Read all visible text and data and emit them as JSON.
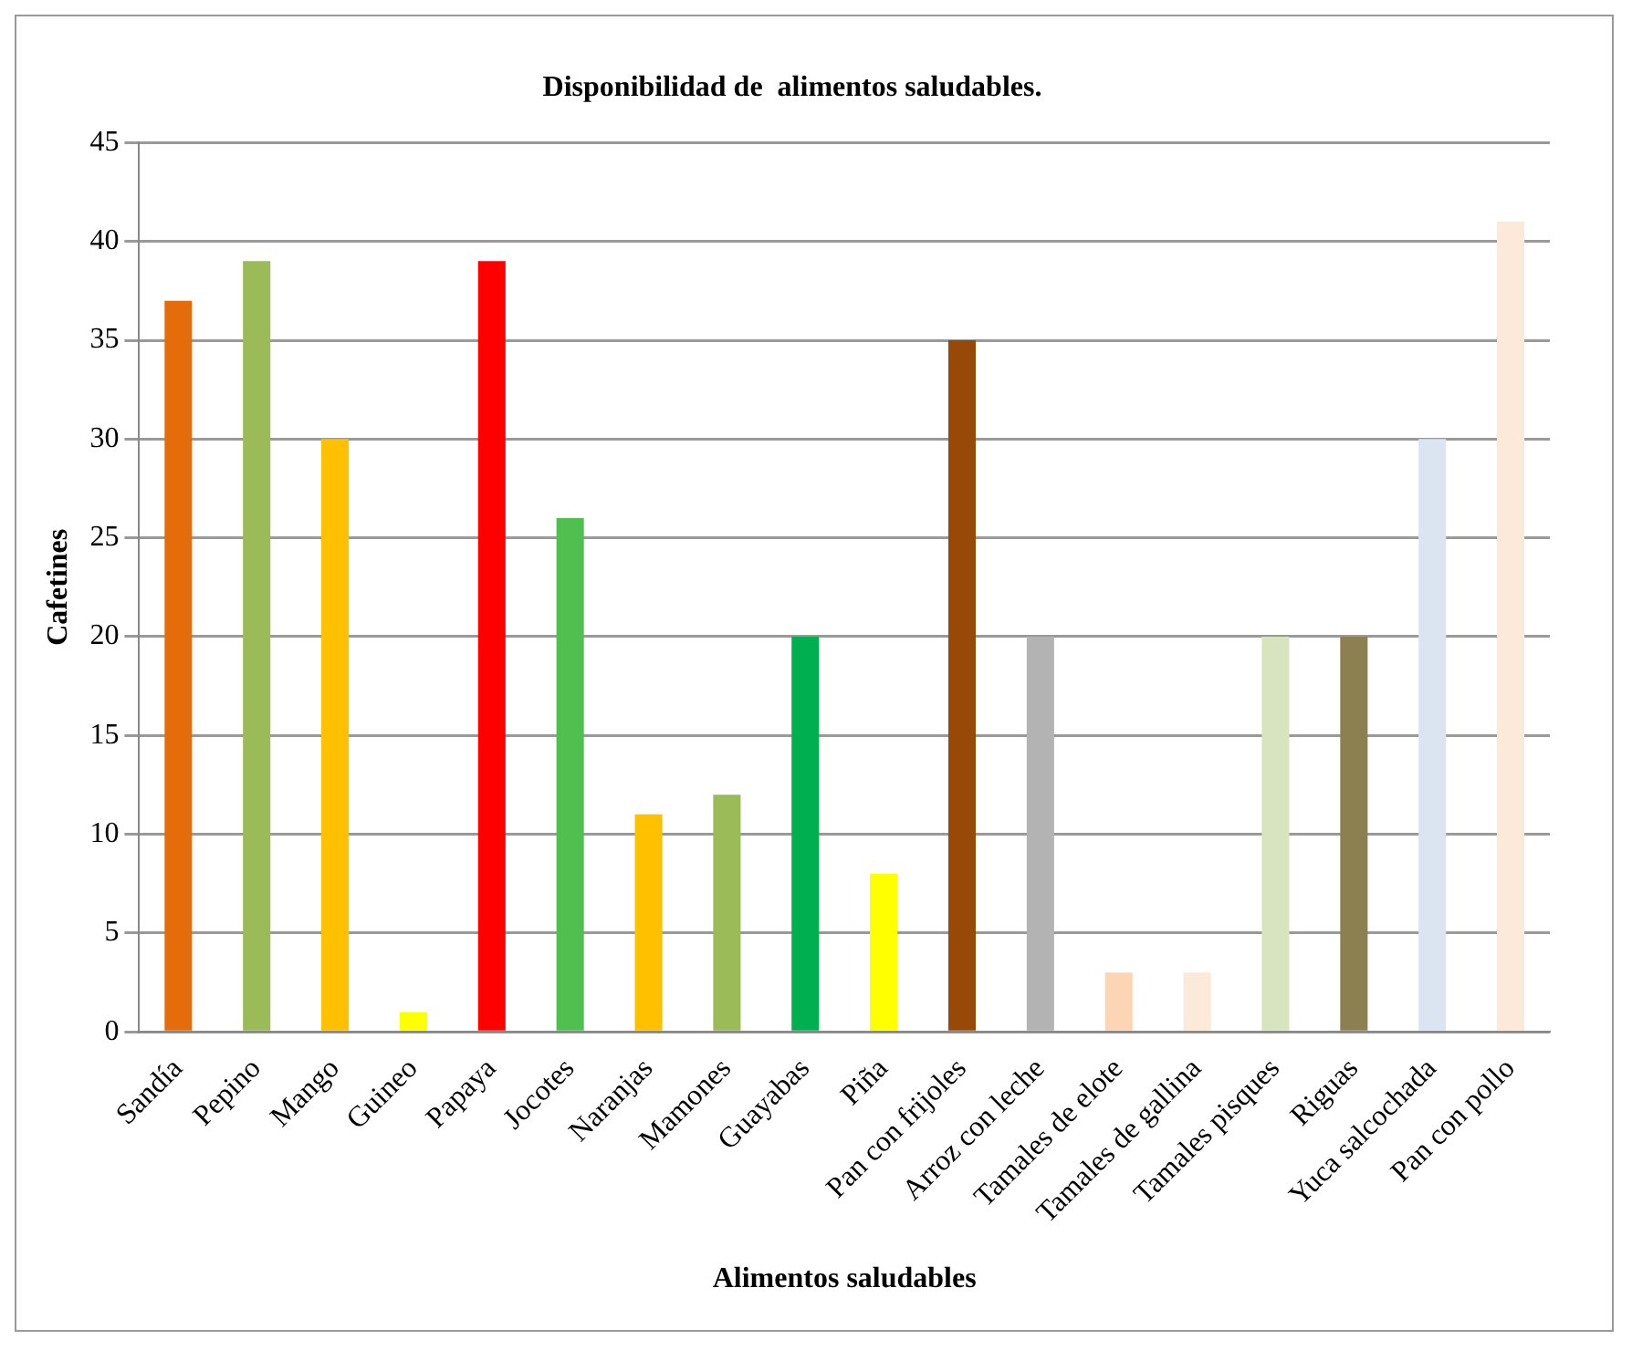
{
  "chart_data": {
    "type": "bar",
    "title": "Disponibilidad de  alimentos saludables.",
    "xlabel": "Alimentos saludables",
    "ylabel": "Cafetines",
    "categories": [
      "Sandía",
      "Pepino",
      "Mango",
      "Guineo",
      "Papaya",
      "Jocotes",
      "Naranjas",
      "Mamones",
      "Guayabas",
      "Piña",
      "Pan con frijoles",
      "Arroz con leche",
      "Tamales de elote",
      "Tamales de gallina",
      "Tamales pisques",
      "Riguas",
      "Yuca salcochada",
      "Pan con pollo"
    ],
    "values": [
      37,
      39,
      30,
      1,
      39,
      26,
      11,
      12,
      20,
      8,
      35,
      20,
      3,
      3,
      20,
      20,
      30,
      41
    ],
    "colors": [
      "#e46c0a",
      "#9bbb59",
      "#ffc000",
      "#ffff00",
      "#ff0000",
      "#4fc04f",
      "#ffc000",
      "#9bbb59",
      "#00b050",
      "#ffff00",
      "#984807",
      "#b3b3b3",
      "#fcd5b5",
      "#fde9d9",
      "#d7e4bd",
      "#8c8050",
      "#dbe5f1",
      "#fde9d9"
    ],
    "ylim": [
      0,
      45
    ],
    "yticks": [
      0,
      5,
      10,
      15,
      20,
      25,
      30,
      35,
      40,
      45
    ],
    "grid": "y",
    "legend": false
  }
}
